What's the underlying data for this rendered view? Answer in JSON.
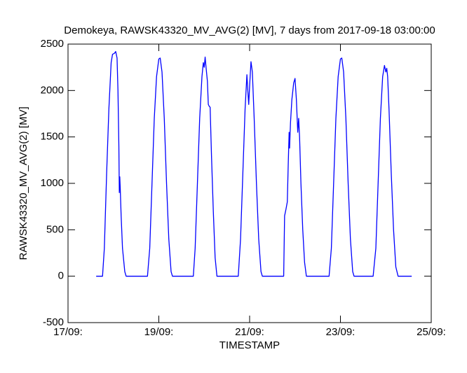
{
  "chart_data": {
    "type": "line",
    "title": "Demokeya, RAWSK43320_MV_AVG(2) [MV], 7 days from  2017-09-18 03:00:00",
    "xlabel": "TIMESTAMP",
    "ylabel": "RAWSK43320_MV_AVG(2) [MV]",
    "xlim": [
      17,
      25
    ],
    "xticks": [
      {
        "value": 17,
        "label": "17/09:"
      },
      {
        "value": 19,
        "label": "19/09:"
      },
      {
        "value": 21,
        "label": "21/09:"
      },
      {
        "value": 23,
        "label": "23/09:"
      },
      {
        "value": 25,
        "label": "25/09:"
      }
    ],
    "ylim": [
      -500,
      2500
    ],
    "yticks": [
      -500,
      0,
      500,
      1000,
      1500,
      2000,
      2500
    ],
    "x": [
      17.62,
      17.76,
      17.8,
      17.85,
      17.9,
      17.95,
      17.98,
      18.02,
      18.05,
      18.08,
      18.1,
      18.12,
      18.13,
      18.14,
      18.15,
      18.17,
      18.2,
      18.25,
      18.28,
      18.75,
      18.8,
      18.85,
      18.9,
      18.95,
      19.0,
      19.03,
      19.07,
      19.12,
      19.17,
      19.22,
      19.27,
      19.3,
      19.76,
      19.8,
      19.85,
      19.9,
      19.95,
      19.98,
      20.0,
      20.02,
      20.04,
      20.07,
      20.09,
      20.11,
      20.13,
      20.16,
      20.2,
      20.24,
      20.28,
      20.75,
      20.8,
      20.85,
      20.9,
      20.94,
      20.96,
      20.98,
      21.0,
      21.03,
      21.06,
      21.1,
      21.15,
      21.2,
      21.25,
      21.28,
      21.75,
      21.77,
      21.8,
      21.83,
      21.85,
      21.87,
      21.88,
      21.9,
      21.93,
      21.97,
      22.0,
      22.03,
      22.06,
      22.08,
      22.1,
      22.13,
      22.17,
      22.21,
      22.25,
      22.75,
      22.8,
      22.85,
      22.9,
      22.95,
      23.0,
      23.03,
      23.07,
      23.12,
      23.17,
      23.22,
      23.27,
      23.3,
      23.72,
      23.78,
      23.83,
      23.88,
      23.93,
      23.97,
      24.0,
      24.02,
      24.04,
      24.07,
      24.12,
      24.17,
      24.22,
      24.27,
      24.57
    ],
    "series": [
      {
        "name": "RAWSK43320_MV_AVG(2)",
        "color": "#0000ff",
        "values": [
          0,
          0,
          300,
          1100,
          1800,
          2300,
          2390,
          2400,
          2420,
          2350,
          2000,
          1400,
          900,
          1070,
          950,
          650,
          300,
          50,
          0,
          0,
          300,
          1000,
          1700,
          2150,
          2340,
          2350,
          2200,
          1700,
          1000,
          400,
          50,
          0,
          0,
          300,
          1000,
          1700,
          2150,
          2300,
          2250,
          2360,
          2250,
          2100,
          1850,
          1830,
          1820,
          1300,
          700,
          200,
          0,
          0,
          400,
          1100,
          1800,
          2170,
          2000,
          1850,
          2050,
          2310,
          2200,
          1700,
          1000,
          400,
          50,
          0,
          0,
          650,
          720,
          800,
          1200,
          1550,
          1380,
          1650,
          1900,
          2080,
          2130,
          1900,
          1550,
          1700,
          1500,
          1000,
          500,
          150,
          0,
          0,
          300,
          1000,
          1700,
          2150,
          2340,
          2350,
          2200,
          1700,
          1000,
          400,
          50,
          0,
          0,
          300,
          1000,
          1700,
          2150,
          2270,
          2200,
          2240,
          2150,
          1800,
          1100,
          500,
          100,
          0,
          0
        ]
      }
    ]
  }
}
